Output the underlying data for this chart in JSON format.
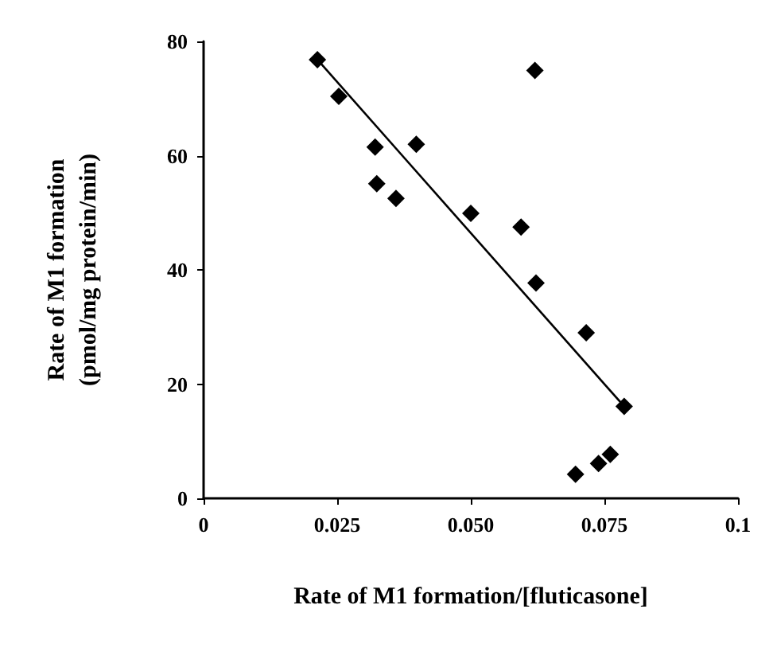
{
  "chart_data": {
    "type": "scatter",
    "xlabel": "Rate of M1 formation/[fluticasone]",
    "ylabel": "Rate of M1 formation\n(pmol/mg protein/min)",
    "xlim": [
      0,
      0.1
    ],
    "ylim": [
      0,
      80
    ],
    "xticks": [
      0,
      {
        "value": 0.025,
        "label": "0.025"
      },
      {
        "value": 0.05,
        "label": "0.050"
      },
      {
        "value": 0.075,
        "label": "0.075"
      },
      0.1
    ],
    "yticks": [
      0,
      20,
      40,
      60,
      80
    ],
    "grid": false,
    "series": [
      {
        "type": "scatter",
        "color": "#000000",
        "marker": "diamond",
        "x": [
          0.0213,
          0.0253,
          0.0321,
          0.0324,
          0.036,
          0.0398,
          0.05,
          0.0594,
          0.0622,
          0.062,
          0.0716,
          0.0787,
          0.0761,
          0.0739,
          0.0696
        ],
        "values": [
          76.8,
          70.4,
          61.5,
          55.1,
          52.5,
          62.0,
          49.9,
          47.5,
          37.7,
          74.9,
          29.0,
          16.1,
          7.7,
          6.1,
          4.2
        ]
      },
      {
        "type": "line",
        "color": "#000000",
        "marker": "none",
        "line_style": "solid",
        "x": [
          0.0213,
          0.0787
        ],
        "values": [
          76.8,
          16.1
        ]
      }
    ]
  }
}
